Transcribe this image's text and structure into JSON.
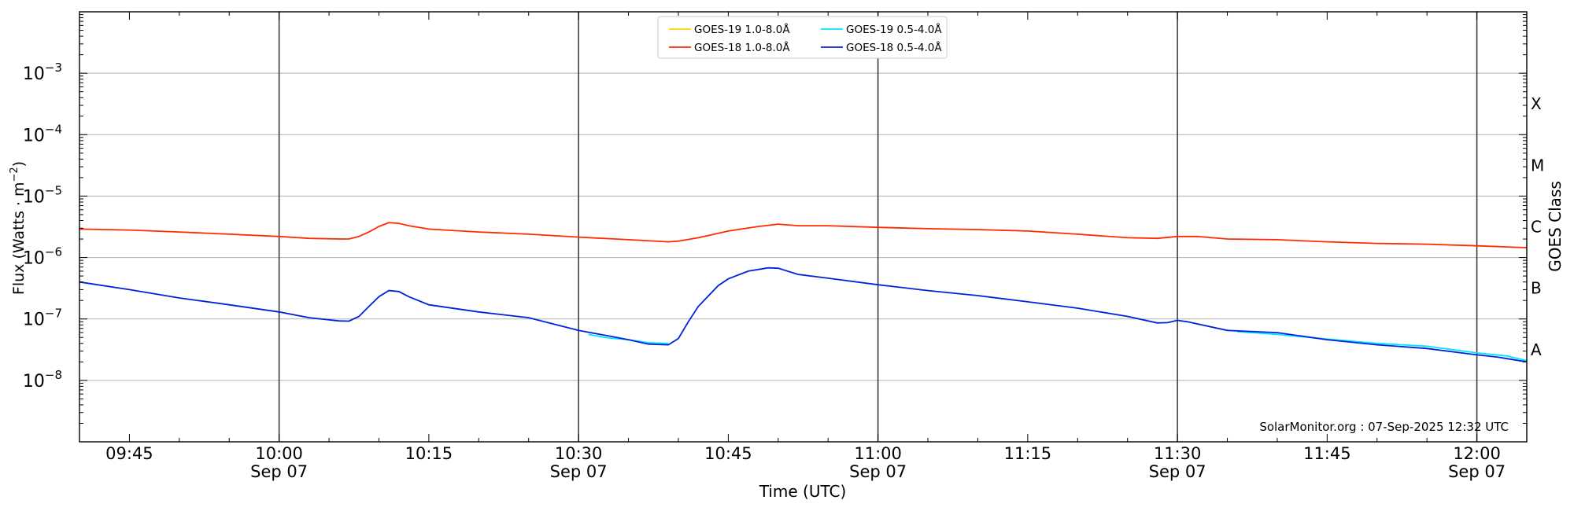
{
  "chart_data": {
    "type": "line",
    "ylabel": "Flux (Watts · m",
    "ylabel_sup": "−2",
    "ylabel_close": ")",
    "xlabel": "Time (UTC)",
    "right_label": "GOES Class",
    "yscale": "log",
    "ylim": [
      1e-09,
      0.01
    ],
    "xlim": [
      "09:40",
      "12:05"
    ],
    "grid": "horizontal",
    "y_ticks": [
      {
        "value": 1e-08,
        "base": "10",
        "exp": "−8"
      },
      {
        "value": 1e-07,
        "base": "10",
        "exp": "−7"
      },
      {
        "value": 1e-06,
        "base": "10",
        "exp": "−6"
      },
      {
        "value": 1e-05,
        "base": "10",
        "exp": "−5"
      },
      {
        "value": 0.0001,
        "base": "10",
        "exp": "−4"
      },
      {
        "value": 0.001,
        "base": "10",
        "exp": "−3"
      }
    ],
    "x_ticks": [
      {
        "time": "09:45",
        "label": "09:45",
        "sub": ""
      },
      {
        "time": "10:00",
        "label": "10:00",
        "sub": "Sep 07"
      },
      {
        "time": "10:15",
        "label": "10:15",
        "sub": ""
      },
      {
        "time": "10:30",
        "label": "10:30",
        "sub": "Sep 07"
      },
      {
        "time": "10:45",
        "label": "10:45",
        "sub": ""
      },
      {
        "time": "11:00",
        "label": "11:00",
        "sub": "Sep 07"
      },
      {
        "time": "11:15",
        "label": "11:15",
        "sub": ""
      },
      {
        "time": "11:30",
        "label": "11:30",
        "sub": "Sep 07"
      },
      {
        "time": "11:45",
        "label": "11:45",
        "sub": ""
      },
      {
        "time": "12:00",
        "label": "12:00",
        "sub": "Sep 07"
      }
    ],
    "vertical_lines": [
      "10:00",
      "10:30",
      "11:00",
      "11:30",
      "12:00"
    ],
    "goes_classes": [
      {
        "label": "X",
        "value": 0.000316
      },
      {
        "label": "M",
        "value": 3.16e-05
      },
      {
        "label": "C",
        "value": 3.16e-06
      },
      {
        "label": "B",
        "value": 3.16e-07
      },
      {
        "label": "A",
        "value": 3.16e-08
      }
    ],
    "legend_position": "top-center",
    "annotation": "SolarMonitor.org : 07-Sep-2025 12:32 UTC",
    "series": [
      {
        "name": "GOES-19 1.0-8.0Å",
        "color": "#ffd700",
        "x": [],
        "y": []
      },
      {
        "name": "GOES-18 1.0-8.0Å",
        "color": "#ff2a00",
        "x": [
          "09:40",
          "09:45",
          "09:50",
          "09:55",
          "10:00",
          "10:03",
          "10:06",
          "10:07",
          "10:08",
          "10:09",
          "10:10",
          "10:11",
          "10:12",
          "10:13",
          "10:15",
          "10:20",
          "10:25",
          "10:30",
          "10:35",
          "10:39",
          "10:40",
          "10:42",
          "10:45",
          "10:48",
          "10:50",
          "10:52",
          "10:55",
          "11:00",
          "11:05",
          "11:10",
          "11:15",
          "11:20",
          "11:25",
          "11:28",
          "11:30",
          "11:32",
          "11:35",
          "11:40",
          "11:45",
          "11:50",
          "11:55",
          "12:00",
          "12:05"
        ],
        "y": [
          2.9e-06,
          2.8e-06,
          2.6e-06,
          2.4e-06,
          2.2e-06,
          2.05e-06,
          2e-06,
          2e-06,
          2.2e-06,
          2.6e-06,
          3.2e-06,
          3.7e-06,
          3.6e-06,
          3.3e-06,
          2.9e-06,
          2.6e-06,
          2.4e-06,
          2.15e-06,
          1.95e-06,
          1.8e-06,
          1.85e-06,
          2.1e-06,
          2.7e-06,
          3.2e-06,
          3.5e-06,
          3.3e-06,
          3.3e-06,
          3.1e-06,
          2.95e-06,
          2.85e-06,
          2.7e-06,
          2.4e-06,
          2.1e-06,
          2.05e-06,
          2.2e-06,
          2.2e-06,
          2e-06,
          1.95e-06,
          1.8e-06,
          1.7e-06,
          1.65e-06,
          1.55e-06,
          1.45e-06
        ]
      },
      {
        "name": "GOES-19 0.5-4.0Å",
        "color": "#00e5ff",
        "x": [
          "10:31",
          "10:33",
          "10:35",
          "10:37",
          "10:39",
          "11:36",
          "11:40",
          "11:45",
          "11:50",
          "11:55",
          "12:00",
          "12:03",
          "12:05"
        ],
        "y": [
          5.6e-08,
          4.9e-08,
          4.6e-08,
          4.1e-08,
          4e-08,
          6.2e-08,
          5.6e-08,
          4.7e-08,
          4e-08,
          3.6e-08,
          2.8e-08,
          2.5e-08,
          2.1e-08
        ]
      },
      {
        "name": "GOES-18 0.5-4.0Å",
        "color": "#0022dd",
        "x": [
          "09:40",
          "09:45",
          "09:50",
          "09:55",
          "10:00",
          "10:03",
          "10:06",
          "10:07",
          "10:08",
          "10:09",
          "10:10",
          "10:11",
          "10:12",
          "10:13",
          "10:15",
          "10:20",
          "10:25",
          "10:30",
          "10:33",
          "10:35",
          "10:37",
          "10:39",
          "10:40",
          "10:41",
          "10:42",
          "10:44",
          "10:45",
          "10:47",
          "10:49",
          "10:50",
          "10:52",
          "10:55",
          "11:00",
          "11:05",
          "11:10",
          "11:15",
          "11:20",
          "11:25",
          "11:28",
          "11:29",
          "11:30",
          "11:31",
          "11:35",
          "11:40",
          "11:45",
          "11:50",
          "11:55",
          "12:00",
          "12:02",
          "12:05"
        ],
        "y": [
          4e-07,
          3e-07,
          2.2e-07,
          1.7e-07,
          1.3e-07,
          1.05e-07,
          9.3e-08,
          9.2e-08,
          1.1e-07,
          1.6e-07,
          2.3e-07,
          2.9e-07,
          2.8e-07,
          2.3e-07,
          1.7e-07,
          1.3e-07,
          1.05e-07,
          6.5e-08,
          5.3e-08,
          4.6e-08,
          3.9e-08,
          3.8e-08,
          4.8e-08,
          9e-08,
          1.6e-07,
          3.5e-07,
          4.5e-07,
          6e-07,
          6.8e-07,
          6.7e-07,
          5.3e-07,
          4.6e-07,
          3.6e-07,
          2.9e-07,
          2.4e-07,
          1.9e-07,
          1.5e-07,
          1.1e-07,
          8.6e-08,
          8.7e-08,
          9.5e-08,
          9e-08,
          6.5e-08,
          6e-08,
          4.6e-08,
          3.8e-08,
          3.3e-08,
          2.6e-08,
          2.4e-08,
          2e-08
        ]
      }
    ]
  }
}
